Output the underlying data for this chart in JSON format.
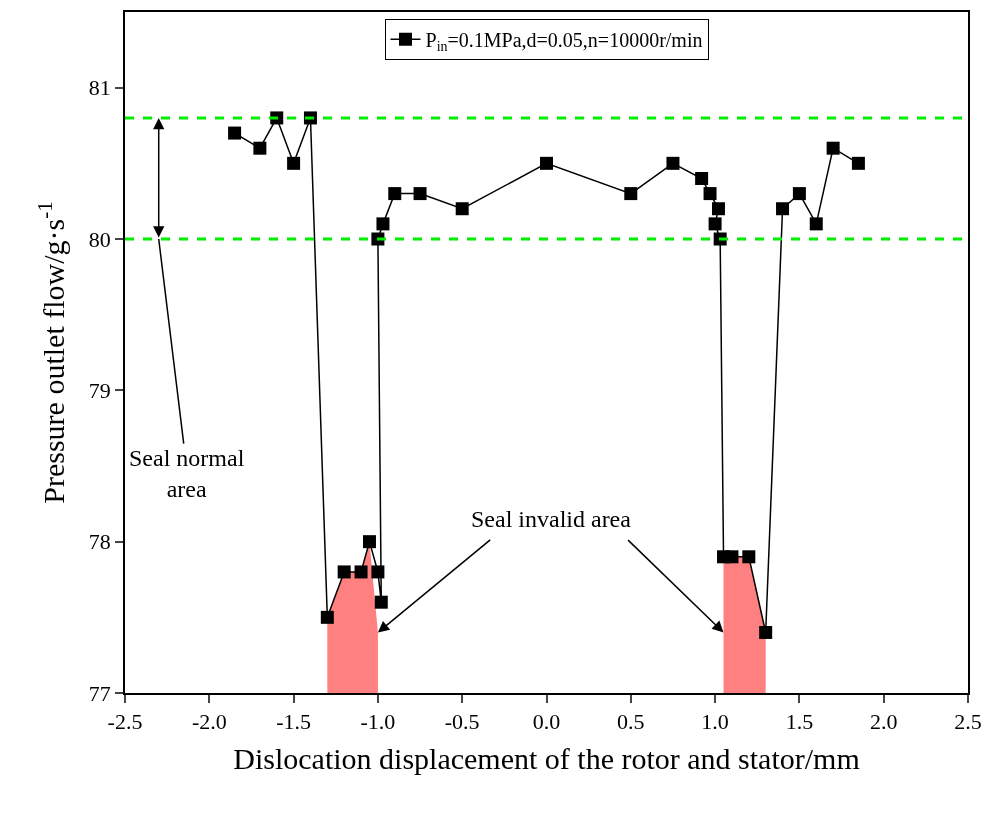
{
  "chart_data": {
    "type": "line",
    "xlabel": "Dislocation displacement of the rotor and stator/mm",
    "ylabel": "Pressure outlet flow/g·s$^{-1}$",
    "xlim": [
      -2.5,
      2.5
    ],
    "xticks": [
      {
        "value": -2.5,
        "label": "-2.5"
      },
      {
        "value": -2,
        "label": "-2.0"
      },
      {
        "value": -1.5,
        "label": "-1.5"
      },
      {
        "value": -1,
        "label": "-1.0"
      },
      {
        "value": -0.5,
        "label": "-0.5"
      },
      {
        "value": 0,
        "label": "0.0"
      },
      {
        "value": 0.5,
        "label": "0.5"
      },
      {
        "value": 1,
        "label": "1.0"
      },
      {
        "value": 1.5,
        "label": "1.5"
      },
      {
        "value": 2,
        "label": "2.0"
      },
      {
        "value": 2.5,
        "label": "2.5"
      }
    ],
    "ylim": [
      77,
      81.5
    ],
    "yticks": [
      77,
      78,
      79,
      80,
      81
    ],
    "legend": "top",
    "series": [
      {
        "type": "area",
        "color": "#ff8080",
        "x": [
          -1.3,
          -1.2,
          -1.1,
          -1.05,
          -1.0
        ],
        "values": [
          77.5,
          77.8,
          77.8,
          78.0,
          77.4
        ]
      },
      {
        "type": "area",
        "color": "#ff8080",
        "x": [
          1.05,
          1.1,
          1.2,
          1.3
        ],
        "values": [
          77.9,
          77.9,
          77.9,
          77.4
        ]
      },
      {
        "name": "P$_{in}$=0.1MPa,d=0.05,n=10000r/min",
        "color": "#000000",
        "marker": "square",
        "x": [
          -1.85,
          -1.7,
          -1.6,
          -1.5,
          -1.4,
          -1.3,
          -1.2,
          -1.1,
          -1.05,
          -1.0,
          -0.98,
          -1.0,
          -0.97,
          -0.9,
          -0.75,
          -0.5,
          0,
          0.5,
          0.75,
          0.92,
          0.97,
          1.02,
          1.0,
          1.03,
          1.05,
          1.1,
          1.2,
          1.3,
          1.4,
          1.5,
          1.6,
          1.7,
          1.85
        ],
        "values": [
          80.7,
          80.6,
          80.8,
          80.5,
          80.8,
          77.5,
          77.8,
          77.8,
          78.0,
          77.8,
          77.6,
          80.0,
          80.1,
          80.3,
          80.3,
          80.2,
          80.5,
          80.3,
          80.5,
          80.4,
          80.3,
          80.2,
          80.1,
          80.0,
          77.9,
          77.9,
          77.9,
          77.4,
          80.2,
          80.3,
          80.1,
          80.6,
          80.5
        ]
      }
    ],
    "ref_lines": [
      {
        "axis": "y",
        "value": 80.8,
        "color": "#00ee00",
        "line_style": "dashed"
      },
      {
        "axis": "y",
        "value": 80.0,
        "color": "#00ee00",
        "line_style": "dashed"
      }
    ],
    "annotations": [
      {
        "text": "Seal normal\narea",
        "x": -2.3,
        "y": 80.0
      },
      {
        "text": "Seal invalid area",
        "x": -1.0,
        "y": 77.4
      }
    ]
  }
}
